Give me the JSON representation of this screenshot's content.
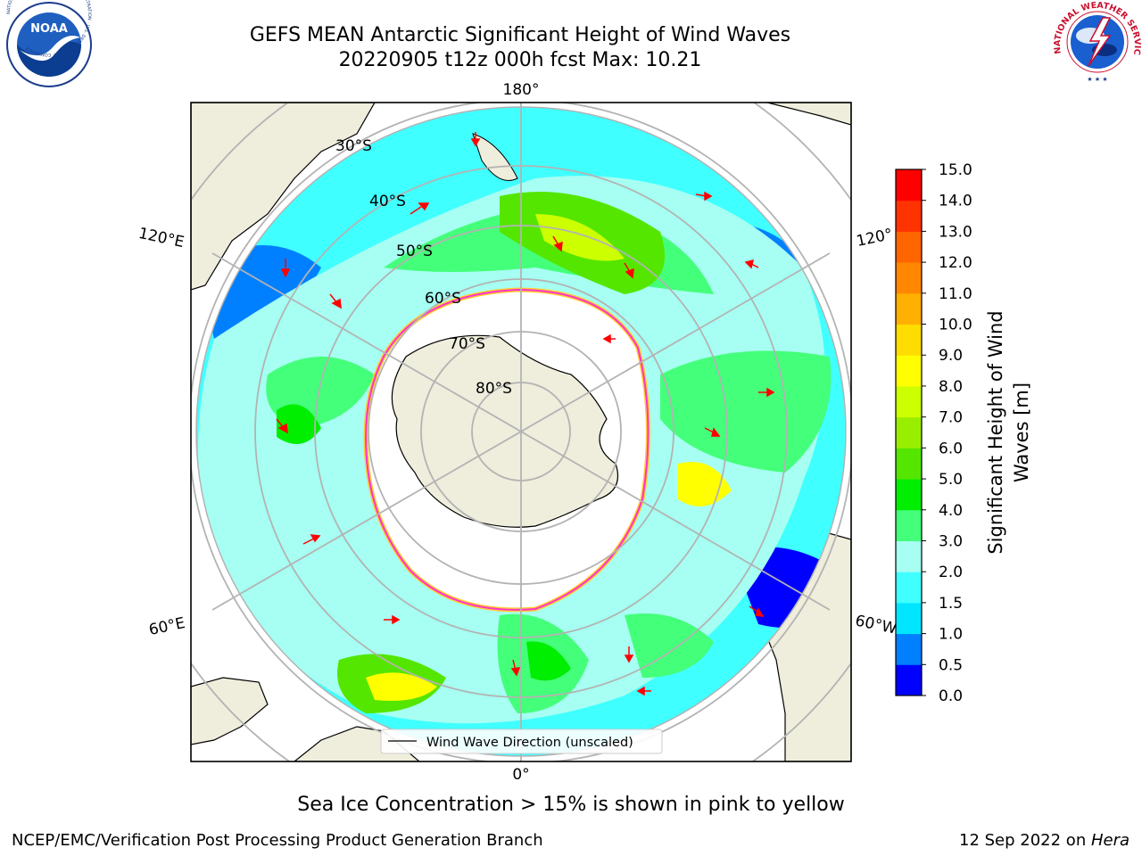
{
  "header": {
    "title_line1": "GEFS MEAN Antarctic Significant Height of Wind Waves",
    "title_line2": "20220905 t12z 000h fcst   Max: 10.21",
    "logo_left": "NOAA",
    "logo_left_ring_text": "NATIONAL OCEANIC AND ATMOSPHERIC ADMINISTRATION · U.S. DEPARTMENT OF COMMERCE",
    "logo_right_ring_text": "NATIONAL WEATHER SERVICE"
  },
  "map": {
    "projection": "south-polar-stereographic",
    "longitude_labels": {
      "top": "180°",
      "bottom": "0°",
      "upper_left": "120°E",
      "lower_left": "60°E",
      "upper_right": "120°",
      "lower_right": "60°W"
    },
    "latitude_labels": [
      "30°S",
      "40°S",
      "50°S",
      "60°S",
      "70°S",
      "80°S"
    ],
    "legend_label": "Wind Wave Direction (unscaled)",
    "colors": {
      "land": "#efeddc",
      "arrow": "#ff0000",
      "ice_edge_inner": "#ff33cc",
      "ice_edge_outer": "#ffcc33",
      "grid": "#b3b3b3"
    }
  },
  "colorbar": {
    "label_line1": "Significant Height of Wind",
    "label_line2": "Waves [m]",
    "ticks": [
      "0.0",
      "0.5",
      "1.0",
      "1.5",
      "2.0",
      "3.0",
      "4.0",
      "5.0",
      "6.0",
      "7.0",
      "8.0",
      "9.0",
      "10.0",
      "11.0",
      "12.0",
      "13.0",
      "14.0",
      "15.0"
    ],
    "colors": [
      "#0000ff",
      "#0080ff",
      "#00e6ff",
      "#40ffff",
      "#a6fff2",
      "#44ff7a",
      "#00ee00",
      "#55e600",
      "#99ee00",
      "#ccff00",
      "#ffff00",
      "#ffdd00",
      "#ffb000",
      "#ff8800",
      "#ff6600",
      "#ff3300",
      "#ff0000"
    ]
  },
  "footer": {
    "note": "Sea Ice Concentration > 15% is shown in pink to yellow",
    "left": "NCEP/EMC/Verification Post Processing Product Generation Branch",
    "right_date": "12 Sep 2022 on ",
    "right_machine": "Hera"
  }
}
